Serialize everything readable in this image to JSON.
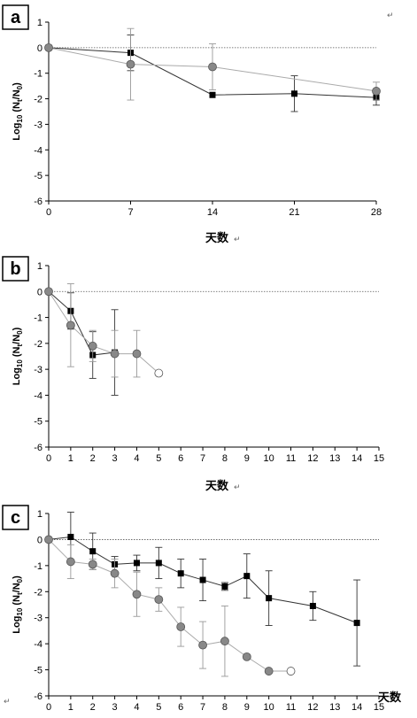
{
  "chart_data": [
    {
      "panel": "a",
      "type": "line",
      "xlabel": "天数",
      "ylabel_main": "Log",
      "ylabel_sub": "10",
      "ylabel_rest": " (N",
      "ylabel_sub2": "t",
      "ylabel_rest2": "/N",
      "ylabel_sub3": "0",
      "ylabel_end": ")",
      "xlim": [
        0,
        28
      ],
      "ylim": [
        -6,
        1
      ],
      "xticks": [
        0,
        7,
        14,
        21,
        28
      ],
      "yticks": [
        1,
        0,
        -1,
        -2,
        -3,
        -4,
        -5,
        -6
      ],
      "series": [
        {
          "marker": "square",
          "color": "#000000",
          "line": "#333333",
          "x": [
            0,
            7,
            14,
            21,
            28
          ],
          "y": [
            0,
            -0.2,
            -1.85,
            -1.8,
            -1.95
          ],
          "err": [
            0,
            0.7,
            0,
            0.7,
            0.3
          ]
        },
        {
          "marker": "circle",
          "color": "#888888",
          "line": "#aaaaaa",
          "x": [
            0,
            7,
            28
          ],
          "y": [
            0,
            -0.65,
            -1.7
          ],
          "err": [
            0,
            1.4,
            0.35
          ],
          "x_extra": [
            14
          ],
          "y_extra": [
            -0.75
          ],
          "err_extra": [
            0.9
          ]
        }
      ]
    },
    {
      "panel": "b",
      "type": "line",
      "xlabel": "天数",
      "xlim": [
        0,
        15
      ],
      "ylim": [
        -6,
        1
      ],
      "xticks": [
        0,
        1,
        2,
        3,
        4,
        5,
        6,
        7,
        8,
        9,
        10,
        11,
        12,
        13,
        14,
        15
      ],
      "yticks": [
        1,
        0,
        -1,
        -2,
        -3,
        -4,
        -5,
        -6
      ],
      "series": [
        {
          "marker": "square",
          "color": "#000000",
          "line": "#333333",
          "x": [
            0,
            1,
            2,
            3
          ],
          "y": [
            0,
            -0.75,
            -2.45,
            -2.35
          ],
          "err": [
            0,
            0.7,
            0.9,
            1.65
          ]
        },
        {
          "marker": "circle",
          "color": "#888888",
          "line": "#aaaaaa",
          "x": [
            0,
            1,
            2,
            3,
            4,
            5
          ],
          "y": [
            0,
            -1.3,
            -2.1,
            -2.4,
            -2.4,
            -3.15
          ],
          "err": [
            0,
            1.6,
            0.6,
            0.9,
            0.9,
            0
          ],
          "last_open": true
        }
      ]
    },
    {
      "panel": "c",
      "type": "line",
      "xlabel": "天数",
      "xlim": [
        0,
        15
      ],
      "ylim": [
        -6,
        1
      ],
      "xticks": [
        0,
        1,
        2,
        3,
        4,
        5,
        6,
        7,
        8,
        9,
        10,
        11,
        12,
        13,
        14,
        15
      ],
      "yticks": [
        1,
        0,
        -1,
        -2,
        -3,
        -4,
        -5,
        -6
      ],
      "series": [
        {
          "marker": "square",
          "color": "#000000",
          "line": "#333333",
          "x": [
            0,
            1,
            2,
            3,
            4,
            5,
            6,
            7,
            8,
            9,
            10,
            12,
            14
          ],
          "y": [
            0,
            0.1,
            -0.45,
            -0.95,
            -0.9,
            -0.9,
            -1.3,
            -1.55,
            -1.8,
            -1.4,
            -2.25,
            -2.55,
            -3.2
          ],
          "err": [
            0,
            0.95,
            0.7,
            0.3,
            0.3,
            0.6,
            0.55,
            0.8,
            0.15,
            0.85,
            1.05,
            0.55,
            1.65
          ]
        },
        {
          "marker": "circle",
          "color": "#888888",
          "line": "#aaaaaa",
          "x": [
            0,
            1,
            2,
            3,
            4,
            5,
            6,
            7,
            8,
            9,
            10,
            11
          ],
          "y": [
            0,
            -0.85,
            -0.95,
            -1.3,
            -2.1,
            -2.3,
            -3.35,
            -4.05,
            -3.9,
            -4.5,
            -5.05,
            -5.05
          ],
          "err": [
            0,
            0.65,
            0.2,
            0.55,
            0.85,
            0.45,
            0.75,
            0.9,
            1.35,
            0,
            0,
            0
          ],
          "last_open": true
        }
      ]
    }
  ],
  "marks": [
    "↵",
    "↵",
    "↵",
    "↵"
  ]
}
